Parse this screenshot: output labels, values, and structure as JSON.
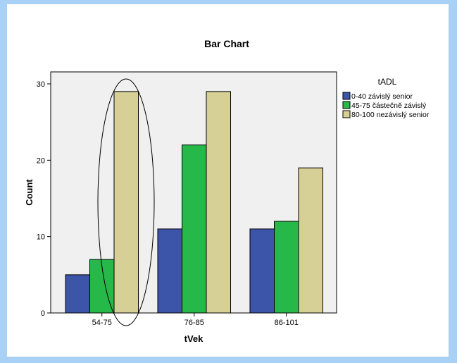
{
  "chart_data": {
    "type": "bar",
    "title": "Bar Chart",
    "xlabel": "tVek",
    "ylabel": "Count",
    "categories": [
      "54-75",
      "76-85",
      "86-101"
    ],
    "series": [
      {
        "name": "0-40 závislý senior",
        "values": [
          5,
          11,
          11
        ],
        "color": "#3d55a8"
      },
      {
        "name": "45-75 částečně závislý",
        "values": [
          7,
          22,
          12
        ],
        "color": "#27b84a"
      },
      {
        "name": "80-100 nezávislý senior",
        "values": [
          29,
          29,
          19
        ],
        "color": "#d6d096"
      }
    ],
    "ylim": [
      0,
      30
    ],
    "yticks": [
      0,
      10,
      20,
      30
    ],
    "legend_title": "tADL",
    "legend_position": "right",
    "grid": false,
    "plot_background": "#f0f0f0",
    "annotation": "ellipse highlighting category 54-75"
  }
}
